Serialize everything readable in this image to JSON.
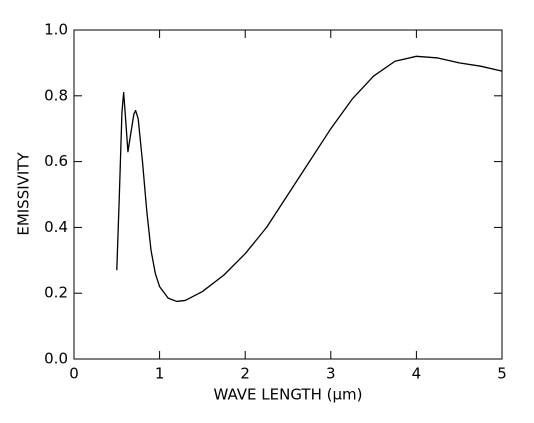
{
  "chart_data": {
    "type": "line",
    "x_label": "WAVE LENGTH (μm)",
    "y_label": "EMISSIVITY",
    "x": [
      0.5,
      0.53,
      0.56,
      0.58,
      0.6,
      0.63,
      0.66,
      0.7,
      0.72,
      0.75,
      0.8,
      0.85,
      0.9,
      0.95,
      1.0,
      1.1,
      1.2,
      1.3,
      1.5,
      1.75,
      2.0,
      2.25,
      2.5,
      2.75,
      3.0,
      3.25,
      3.5,
      3.75,
      4.0,
      4.25,
      4.5,
      4.75,
      5.0
    ],
    "series": [
      {
        "color": "#000000",
        "values": [
          0.27,
          0.5,
          0.75,
          0.81,
          0.74,
          0.63,
          0.68,
          0.745,
          0.755,
          0.73,
          0.6,
          0.45,
          0.33,
          0.26,
          0.22,
          0.185,
          0.175,
          0.178,
          0.205,
          0.255,
          0.32,
          0.4,
          0.5,
          0.6,
          0.7,
          0.79,
          0.86,
          0.905,
          0.92,
          0.915,
          0.9,
          0.89,
          0.875
        ]
      }
    ],
    "xlim": [
      0,
      5
    ],
    "ylim": [
      0,
      1
    ],
    "xticks": [
      0,
      1,
      2,
      3,
      4,
      5
    ],
    "yticks": [
      {
        "value": 0,
        "label": "0.0"
      },
      0.2,
      0.4,
      0.6,
      0.8,
      {
        "value": 1,
        "label": "1.0"
      }
    ]
  }
}
